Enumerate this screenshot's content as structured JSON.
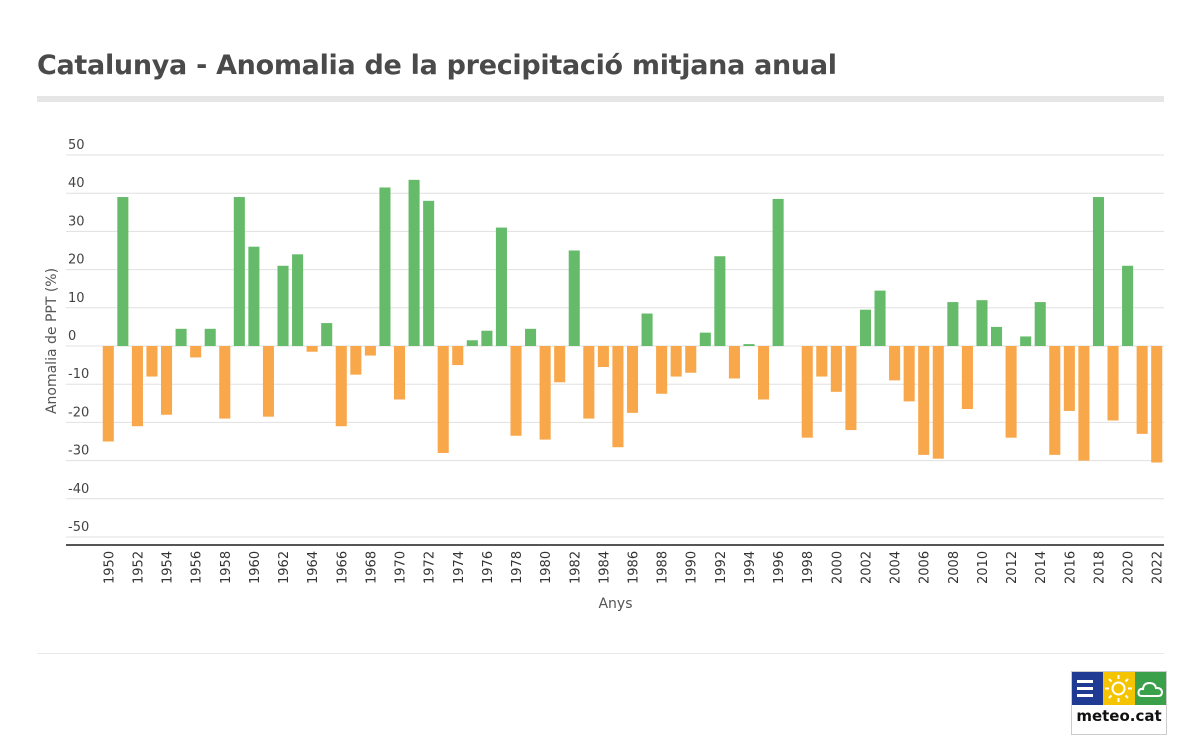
{
  "title": "Catalunya - Anomalia de la precipitació mitjana anual",
  "colors": {
    "positive": "#66bb6a",
    "negative": "#f9a74b",
    "grid": "#e0e0e0",
    "axis": "#555555"
  },
  "logo": {
    "text": "meteo.cat",
    "cells": [
      {
        "icon": "bars-icon",
        "color": "#1f3a93"
      },
      {
        "icon": "sun-icon",
        "color": "#f5c400"
      },
      {
        "icon": "cloud-icon",
        "color": "#3aa14a"
      }
    ]
  },
  "chart_data": {
    "type": "bar",
    "xlabel": "Anys",
    "ylabel": "Anomalia de PPT (%)",
    "ylim": [
      -50,
      50
    ],
    "yticks": [
      50,
      40,
      30,
      20,
      10,
      0,
      -10,
      -20,
      -30,
      -40,
      -50
    ],
    "grid": true,
    "legend": "none",
    "categories": [
      1950,
      1951,
      1952,
      1953,
      1954,
      1955,
      1956,
      1957,
      1958,
      1959,
      1960,
      1961,
      1962,
      1963,
      1964,
      1965,
      1966,
      1967,
      1968,
      1969,
      1970,
      1971,
      1972,
      1973,
      1974,
      1975,
      1976,
      1977,
      1978,
      1979,
      1980,
      1981,
      1982,
      1983,
      1984,
      1985,
      1986,
      1987,
      1988,
      1989,
      1990,
      1991,
      1992,
      1993,
      1994,
      1995,
      1996,
      1997,
      1998,
      1999,
      2000,
      2001,
      2002,
      2003,
      2004,
      2005,
      2006,
      2007,
      2008,
      2009,
      2010,
      2011,
      2012,
      2013,
      2014,
      2015,
      2016,
      2017,
      2018,
      2019,
      2020,
      2021,
      2022
    ],
    "xtick_labels": [
      "1950",
      "1952",
      "1954",
      "1956",
      "1958",
      "1960",
      "1962",
      "1964",
      "1966",
      "1968",
      "1970",
      "1972",
      "1974",
      "1976",
      "1978",
      "1980",
      "1982",
      "1984",
      "1986",
      "1988",
      "1990",
      "1992",
      "1994",
      "1996",
      "1998",
      "2000",
      "2002",
      "2004",
      "2006",
      "2008",
      "2010",
      "2012",
      "2014",
      "2016",
      "2018",
      "2020",
      "2022"
    ],
    "values": [
      -25,
      39,
      -21,
      -8,
      -18,
      4.5,
      -3,
      4.5,
      -19,
      39,
      26,
      -18.5,
      21,
      24,
      -1.5,
      6,
      -21,
      -7.5,
      -2.5,
      41.5,
      -14,
      43.5,
      38,
      -28,
      -5,
      1.5,
      4,
      31,
      -23.5,
      4.5,
      -24.5,
      -9.5,
      25,
      -19,
      -5.5,
      -26.5,
      -17.5,
      8.5,
      -12.5,
      -8,
      -7,
      3.5,
      23.5,
      -8.5,
      0.5,
      -14,
      38.5,
      0,
      -24,
      -8,
      -12,
      -22,
      9.5,
      14.5,
      -9,
      -14.5,
      -28.5,
      -29.5,
      11.5,
      -16.5,
      12,
      5,
      -24,
      2.5,
      11.5,
      -28.5,
      -17,
      -30,
      39,
      -19.5,
      21,
      -23,
      -30.5
    ]
  }
}
